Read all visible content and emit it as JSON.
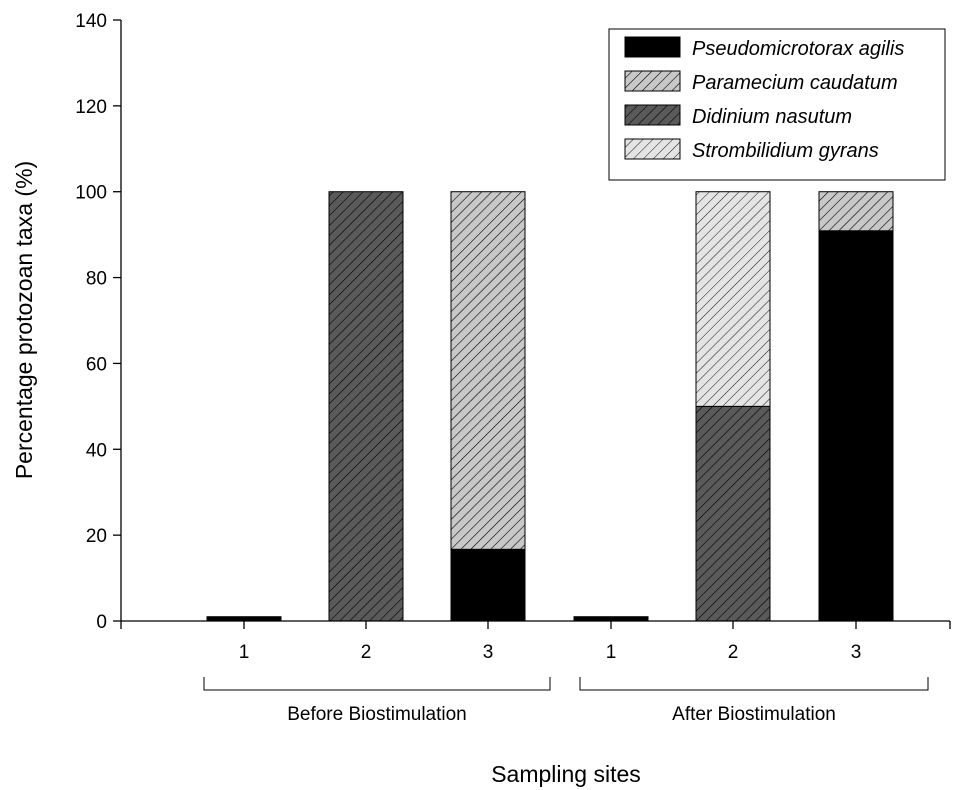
{
  "chart_data": {
    "type": "bar",
    "stacked": true,
    "ylabel": "Percentage protozoan taxa (%)",
    "xlabel": "Sampling sites",
    "ylim": [
      0,
      140
    ],
    "yticks": [
      0,
      20,
      40,
      60,
      80,
      100,
      120,
      140
    ],
    "legend_position": "top-right",
    "groups": [
      {
        "label": "Before Biostimulation",
        "categories": [
          "1",
          "2",
          "3"
        ]
      },
      {
        "label": "After Biostimulation",
        "categories": [
          "1",
          "2",
          "3"
        ]
      }
    ],
    "categories": [
      "1",
      "2",
      "3",
      "1",
      "2",
      "3"
    ],
    "series": [
      {
        "name": "Pseudomicrotorax agilis",
        "color": "#000000",
        "pattern": "solid",
        "values": [
          1,
          0,
          16.7,
          1,
          0,
          90.9
        ]
      },
      {
        "name": "Paramecium caudatum",
        "color": "#c8c8c8",
        "pattern": "hatch",
        "values": [
          0,
          0,
          83.3,
          0,
          0,
          9.1
        ]
      },
      {
        "name": "Didinium nasutum",
        "color": "#5a5a5a",
        "pattern": "hatch",
        "values": [
          0,
          100,
          0,
          0,
          50,
          0
        ]
      },
      {
        "name": "Strombilidium gyrans",
        "color": "#e4e4e4",
        "pattern": "hatch",
        "values": [
          0,
          0,
          0,
          0,
          50,
          0
        ]
      }
    ]
  }
}
